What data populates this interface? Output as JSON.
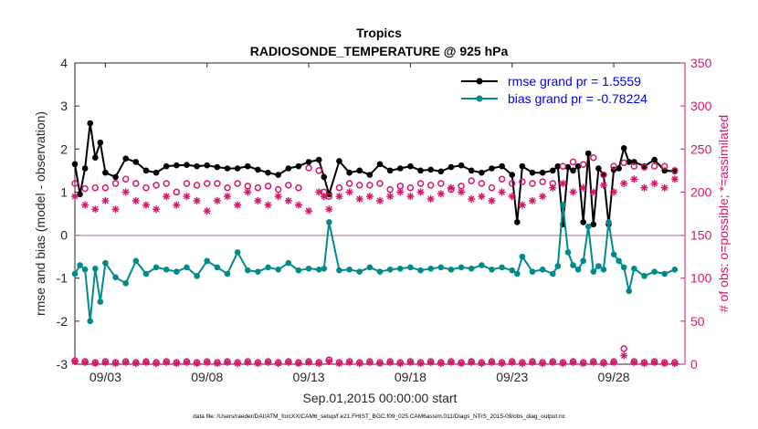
{
  "chart_data": {
    "type": "line",
    "title": "Tropics",
    "subtitle": "RADIOSONDE_TEMPERATURE @ 925 hPa",
    "xlabel": "Sep.01,2015 00:00:00 start",
    "ylabel": "rmse and bias (model - observation)",
    "y2label": "# of obs: o=possible; *=assimilated",
    "footnote": "data file: /Users/raeder/DAI/ATM_forcXX/CAM6_setup/f.e21.FHIST_BGC.f09_025.CAM6assim.011/Diags_NTrS_2015-09/obs_diag_output.nc",
    "xlim": [
      1.5,
      31.5
    ],
    "ylim": [
      -3,
      4
    ],
    "y2lim": [
      0,
      350
    ],
    "xticks": [
      3,
      8,
      13,
      18,
      23,
      28
    ],
    "xtick_labels": [
      "09/03",
      "09/08",
      "09/13",
      "09/18",
      "09/23",
      "09/28"
    ],
    "yticks": [
      4,
      3,
      2,
      1,
      0,
      -1,
      -2,
      -3
    ],
    "ytick_labels": [
      "4",
      "3",
      "2",
      "1",
      "0",
      "-1",
      "-2",
      "-3"
    ],
    "y2ticks": [
      350,
      300,
      250,
      200,
      150,
      100,
      50,
      0
    ],
    "y2tick_labels": [
      "350",
      "300",
      "250",
      "200",
      "150",
      "100",
      "50",
      "0"
    ],
    "legend": {
      "position": "top-right",
      "entries": [
        "rmse grand pr = 1.5559",
        "bias grand pr = -0.78224"
      ]
    },
    "series": [
      {
        "name": "rmse grand pr = 1.5559",
        "color": "#000000",
        "x": [
          1.5,
          1.75,
          2,
          2.25,
          2.5,
          2.75,
          3,
          3.5,
          4,
          4.5,
          5,
          5.5,
          6,
          6.5,
          7,
          7.5,
          8,
          8.5,
          9,
          9.5,
          10,
          10.5,
          11,
          11.5,
          12,
          12.5,
          13,
          13.5,
          13.75,
          14,
          14.5,
          15,
          15.5,
          16,
          16.5,
          17,
          17.5,
          18,
          18.5,
          19,
          19.5,
          20,
          20.5,
          21,
          21.5,
          22,
          22.5,
          23,
          23.25,
          23.5,
          24,
          24.5,
          25,
          25.25,
          25.5,
          25.75,
          26,
          26.25,
          26.5,
          26.75,
          27,
          27.25,
          27.5,
          27.75,
          28,
          28.25,
          28.5,
          28.75,
          29,
          29.5,
          30,
          30.5,
          31
        ],
        "values": [
          1.65,
          0.95,
          1.55,
          2.6,
          1.8,
          2.15,
          1.45,
          1.35,
          1.78,
          1.7,
          1.5,
          1.45,
          1.6,
          1.62,
          1.63,
          1.6,
          1.62,
          1.58,
          1.55,
          1.55,
          1.6,
          1.52,
          1.45,
          1.4,
          1.55,
          1.6,
          1.7,
          1.75,
          1.35,
          0.95,
          1.72,
          1.45,
          1.5,
          1.4,
          1.65,
          1.5,
          1.55,
          1.6,
          1.5,
          1.52,
          1.48,
          1.58,
          1.62,
          1.5,
          1.45,
          1.55,
          1.6,
          1.4,
          0.3,
          1.6,
          1.45,
          1.45,
          1.5,
          1.6,
          0.25,
          1.58,
          1.5,
          1.6,
          0.3,
          1.9,
          0.25,
          1.55,
          1.4,
          0.25,
          1.52,
          1.55,
          2.02,
          1.7,
          1.7,
          1.6,
          1.75,
          1.5,
          1.48
        ]
      },
      {
        "name": "bias grand pr = -0.78224",
        "color": "#008b8b",
        "x": [
          1.5,
          1.75,
          2,
          2.25,
          2.5,
          2.75,
          3,
          3.5,
          4,
          4.5,
          5,
          5.5,
          6,
          6.5,
          7,
          7.5,
          8,
          8.5,
          9,
          9.5,
          10,
          10.5,
          11,
          11.5,
          12,
          12.5,
          13,
          13.5,
          13.75,
          14,
          14.5,
          15,
          15.5,
          16,
          16.5,
          17,
          17.5,
          18,
          18.5,
          19,
          19.5,
          20,
          20.5,
          21,
          21.5,
          22,
          22.5,
          23,
          23.25,
          23.5,
          24,
          24.5,
          25,
          25.25,
          25.5,
          25.75,
          26,
          26.25,
          26.5,
          26.75,
          27,
          27.25,
          27.5,
          27.75,
          28,
          28.25,
          28.5,
          28.75,
          29,
          29.5,
          30,
          30.5,
          31
        ],
        "values": [
          -0.9,
          -0.7,
          -0.8,
          -2.0,
          -0.78,
          -1.55,
          -0.65,
          -0.98,
          -1.12,
          -0.6,
          -0.9,
          -0.75,
          -0.8,
          -0.85,
          -0.75,
          -0.95,
          -0.6,
          -0.75,
          -0.9,
          -0.4,
          -0.82,
          -0.85,
          -0.75,
          -0.8,
          -0.65,
          -0.82,
          -0.78,
          -0.8,
          -0.78,
          0.3,
          -0.82,
          -0.8,
          -0.85,
          -0.75,
          -0.85,
          -0.8,
          -0.78,
          -0.75,
          -0.82,
          -0.78,
          -0.75,
          -0.8,
          -0.75,
          -0.78,
          -0.7,
          -0.8,
          -0.75,
          -0.82,
          -0.9,
          -0.5,
          -0.85,
          -0.8,
          -0.9,
          -0.72,
          0.7,
          -0.4,
          -0.7,
          -0.8,
          -0.6,
          0.2,
          -0.85,
          -0.72,
          -0.8,
          0.3,
          -0.45,
          -0.6,
          -0.75,
          -1.3,
          -0.78,
          -0.95,
          -0.85,
          -0.9,
          -0.8
        ]
      },
      {
        "name": "possible obs count (o)",
        "axis": "right",
        "color": "#d6166b",
        "x": [
          1.5,
          2,
          2.5,
          3,
          3.5,
          4,
          4.5,
          5,
          5.5,
          6,
          6.5,
          7,
          7.5,
          8,
          8.5,
          9,
          9.5,
          10,
          10.5,
          11,
          11.5,
          12,
          12.5,
          13,
          13.5,
          13.75,
          14,
          14.5,
          15,
          15.5,
          16,
          16.5,
          17,
          17.5,
          18,
          18.5,
          19,
          19.5,
          20,
          20.5,
          21,
          21.5,
          22,
          22.5,
          23,
          23.5,
          24,
          24.5,
          25,
          25.5,
          26,
          26.5,
          27,
          27.5,
          28,
          28.5,
          29,
          29.5,
          30,
          30.5,
          31
        ],
        "values": [
          210,
          204,
          205,
          205,
          210,
          215,
          210,
          205,
          208,
          210,
          200,
          210,
          208,
          210,
          210,
          205,
          210,
          207,
          205,
          207,
          203,
          208,
          205,
          228,
          225,
          200,
          195,
          205,
          210,
          208,
          208,
          210,
          203,
          207,
          205,
          210,
          208,
          210,
          203,
          207,
          213,
          210,
          205,
          215,
          210,
          212,
          210,
          212,
          210,
          230,
          235,
          232,
          240,
          220,
          230,
          234,
          230,
          229,
          230,
          230,
          225
        ]
      },
      {
        "name": "assimilated obs count (*)",
        "axis": "right",
        "color": "#d6166b",
        "x": [
          1.5,
          2,
          2.5,
          3,
          3.5,
          4,
          4.5,
          5,
          5.5,
          6,
          6.5,
          7,
          7.5,
          8,
          8.5,
          9,
          9.5,
          10,
          10.5,
          11,
          11.5,
          12,
          12.5,
          13,
          13.5,
          13.75,
          14,
          14.5,
          15,
          15.5,
          16,
          16.5,
          17,
          17.5,
          18,
          18.5,
          19,
          19.5,
          20,
          20.5,
          21,
          21.5,
          22,
          22.5,
          23,
          23.5,
          24,
          24.5,
          25,
          25.5,
          26,
          26.5,
          27,
          27.5,
          28,
          28.5,
          29,
          29.5,
          30,
          30.5,
          31
        ],
        "values": [
          195,
          185,
          180,
          190,
          180,
          200,
          190,
          185,
          180,
          195,
          185,
          195,
          190,
          178,
          190,
          195,
          185,
          200,
          190,
          185,
          195,
          190,
          185,
          178,
          200,
          195,
          180,
          195,
          200,
          192,
          195,
          190,
          195,
          200,
          195,
          200,
          192,
          198,
          205,
          200,
          192,
          195,
          190,
          200,
          195,
          185,
          190,
          195,
          205,
          210,
          200,
          205,
          200,
          208,
          200,
          210,
          215,
          205,
          210,
          205,
          215
        ]
      },
      {
        "name": "possible obs count, low (o)",
        "axis": "right",
        "color": "#d6166b",
        "x": [
          1.5,
          2,
          2.5,
          3,
          3.5,
          4,
          4.5,
          5,
          5.5,
          6,
          6.5,
          7,
          7.5,
          8,
          8.5,
          9,
          9.5,
          10,
          10.5,
          11,
          11.5,
          12,
          12.5,
          13,
          13.5,
          14,
          14.5,
          15,
          15.5,
          16,
          16.5,
          17,
          17.5,
          18,
          18.5,
          19,
          19.5,
          20,
          20.5,
          21,
          21.5,
          22,
          22.5,
          23,
          23.5,
          24,
          24.5,
          25,
          25.5,
          26,
          26.5,
          27,
          27.5,
          28,
          28.5,
          29,
          29.5,
          30,
          30.5,
          31
        ],
        "values": [
          4,
          3,
          2,
          3,
          2,
          3,
          2,
          3,
          2,
          3,
          2,
          3,
          2,
          3,
          2,
          3,
          2,
          3,
          2,
          3,
          2,
          3,
          2,
          3,
          2,
          5,
          2,
          3,
          2,
          3,
          2,
          3,
          2,
          3,
          2,
          3,
          2,
          3,
          2,
          3,
          2,
          3,
          2,
          3,
          2,
          3,
          2,
          3,
          2,
          3,
          2,
          3,
          2,
          3,
          18,
          3,
          2,
          3,
          2,
          2
        ]
      },
      {
        "name": "assimilated obs count, low (*)",
        "axis": "right",
        "color": "#d6166b",
        "x": [
          1.5,
          2,
          2.5,
          3,
          3.5,
          4,
          4.5,
          5,
          5.5,
          6,
          6.5,
          7,
          7.5,
          8,
          8.5,
          9,
          9.5,
          10,
          10.5,
          11,
          11.5,
          12,
          12.5,
          13,
          13.5,
          14,
          14.5,
          15,
          15.5,
          16,
          16.5,
          17,
          17.5,
          18,
          18.5,
          19,
          19.5,
          20,
          20.5,
          21,
          21.5,
          22,
          22.5,
          23,
          23.5,
          24,
          24.5,
          25,
          25.5,
          26,
          26.5,
          27,
          27.5,
          28,
          28.5,
          29,
          29.5,
          30,
          30.5,
          31
        ],
        "values": [
          3,
          2,
          1,
          2,
          1,
          2,
          1,
          2,
          1,
          2,
          1,
          2,
          1,
          2,
          1,
          2,
          1,
          2,
          1,
          2,
          1,
          2,
          1,
          2,
          1,
          3,
          1,
          2,
          1,
          2,
          1,
          2,
          1,
          2,
          1,
          2,
          1,
          2,
          1,
          2,
          1,
          2,
          1,
          2,
          1,
          2,
          1,
          2,
          1,
          2,
          1,
          2,
          1,
          2,
          10,
          2,
          1,
          2,
          1,
          1
        ]
      }
    ]
  }
}
